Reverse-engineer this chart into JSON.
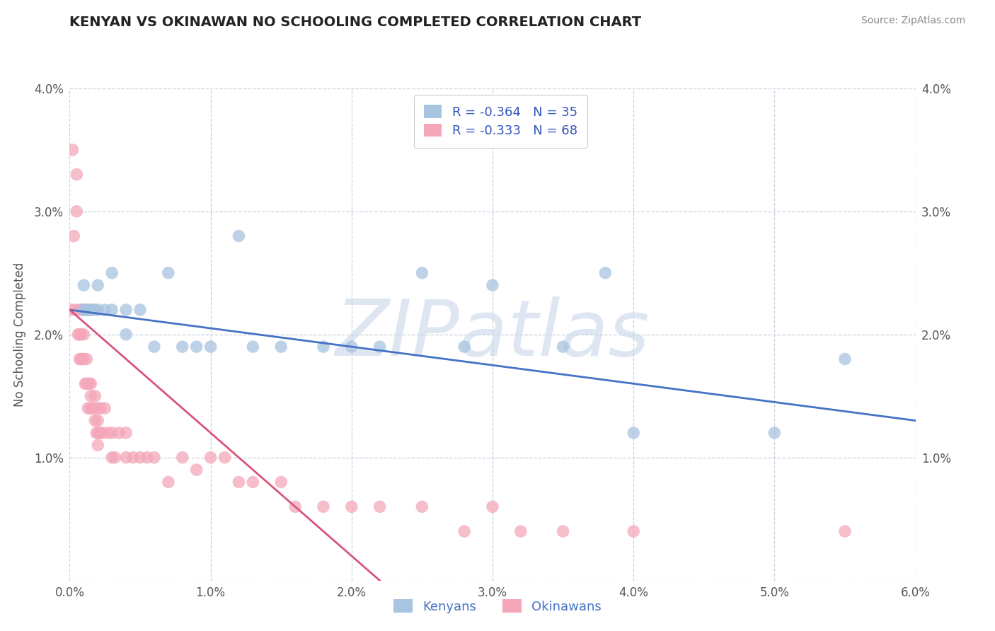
{
  "title": "KENYAN VS OKINAWAN NO SCHOOLING COMPLETED CORRELATION CHART",
  "source_text": "Source: ZipAtlas.com",
  "ylabel": "No Schooling Completed",
  "xlim": [
    0.0,
    0.06
  ],
  "ylim": [
    0.0,
    0.04
  ],
  "xticks": [
    0.0,
    0.01,
    0.02,
    0.03,
    0.04,
    0.05,
    0.06
  ],
  "yticks": [
    0.0,
    0.01,
    0.02,
    0.03,
    0.04
  ],
  "xtick_labels": [
    "0.0%",
    "1.0%",
    "2.0%",
    "3.0%",
    "4.0%",
    "5.0%",
    "6.0%"
  ],
  "ytick_labels_left": [
    "",
    "1.0%",
    "2.0%",
    "3.0%",
    "4.0%"
  ],
  "ytick_labels_right": [
    "",
    "1.0%",
    "2.0%",
    "3.0%",
    "4.0%"
  ],
  "kenyan_color": "#a8c4e0",
  "okinawan_color": "#f4a7b9",
  "kenyan_line_color": "#4472c4",
  "okinawan_line_color": "#d9547a",
  "kenyan_R": -0.364,
  "kenyan_N": 35,
  "okinawan_R": -0.333,
  "okinawan_N": 68,
  "legend_labels": [
    "Kenyans",
    "Okinawans"
  ],
  "watermark": "ZIPatlas",
  "watermark_color": "#c8d8e8",
  "background_color": "#ffffff",
  "grid_color": "#c8d0e0",
  "kenyan_x": [
    0.001,
    0.001,
    0.0012,
    0.0013,
    0.0013,
    0.0015,
    0.0016,
    0.0018,
    0.002,
    0.002,
    0.0025,
    0.003,
    0.003,
    0.004,
    0.004,
    0.005,
    0.006,
    0.007,
    0.008,
    0.009,
    0.01,
    0.012,
    0.013,
    0.015,
    0.018,
    0.02,
    0.022,
    0.025,
    0.028,
    0.03,
    0.035,
    0.038,
    0.04,
    0.05,
    0.055
  ],
  "kenyan_y": [
    0.024,
    0.022,
    0.022,
    0.022,
    0.022,
    0.022,
    0.022,
    0.022,
    0.024,
    0.022,
    0.022,
    0.022,
    0.025,
    0.022,
    0.02,
    0.022,
    0.019,
    0.025,
    0.019,
    0.019,
    0.019,
    0.028,
    0.019,
    0.019,
    0.019,
    0.019,
    0.019,
    0.025,
    0.019,
    0.024,
    0.019,
    0.025,
    0.012,
    0.012,
    0.018
  ],
  "okinawan_x": [
    0.0001,
    0.0002,
    0.0003,
    0.0004,
    0.0005,
    0.0005,
    0.0006,
    0.0007,
    0.0007,
    0.0007,
    0.0008,
    0.0008,
    0.0009,
    0.0009,
    0.001,
    0.001,
    0.001,
    0.0011,
    0.0012,
    0.0012,
    0.0013,
    0.0014,
    0.0015,
    0.0015,
    0.0015,
    0.0016,
    0.0017,
    0.0018,
    0.0018,
    0.0019,
    0.002,
    0.002,
    0.002,
    0.002,
    0.0022,
    0.0022,
    0.0023,
    0.0025,
    0.0027,
    0.003,
    0.003,
    0.0032,
    0.0035,
    0.004,
    0.004,
    0.0045,
    0.005,
    0.0055,
    0.006,
    0.007,
    0.008,
    0.009,
    0.01,
    0.011,
    0.012,
    0.013,
    0.015,
    0.016,
    0.018,
    0.02,
    0.022,
    0.025,
    0.028,
    0.03,
    0.032,
    0.035,
    0.04,
    0.055
  ],
  "okinawan_y": [
    0.022,
    0.035,
    0.028,
    0.022,
    0.03,
    0.033,
    0.02,
    0.022,
    0.018,
    0.02,
    0.02,
    0.018,
    0.022,
    0.018,
    0.022,
    0.02,
    0.018,
    0.016,
    0.018,
    0.016,
    0.014,
    0.016,
    0.016,
    0.015,
    0.014,
    0.014,
    0.014,
    0.015,
    0.013,
    0.012,
    0.014,
    0.013,
    0.012,
    0.011,
    0.014,
    0.012,
    0.012,
    0.014,
    0.012,
    0.012,
    0.01,
    0.01,
    0.012,
    0.01,
    0.012,
    0.01,
    0.01,
    0.01,
    0.01,
    0.008,
    0.01,
    0.009,
    0.01,
    0.01,
    0.008,
    0.008,
    0.008,
    0.006,
    0.006,
    0.006,
    0.006,
    0.006,
    0.004,
    0.006,
    0.004,
    0.004,
    0.004,
    0.004
  ]
}
